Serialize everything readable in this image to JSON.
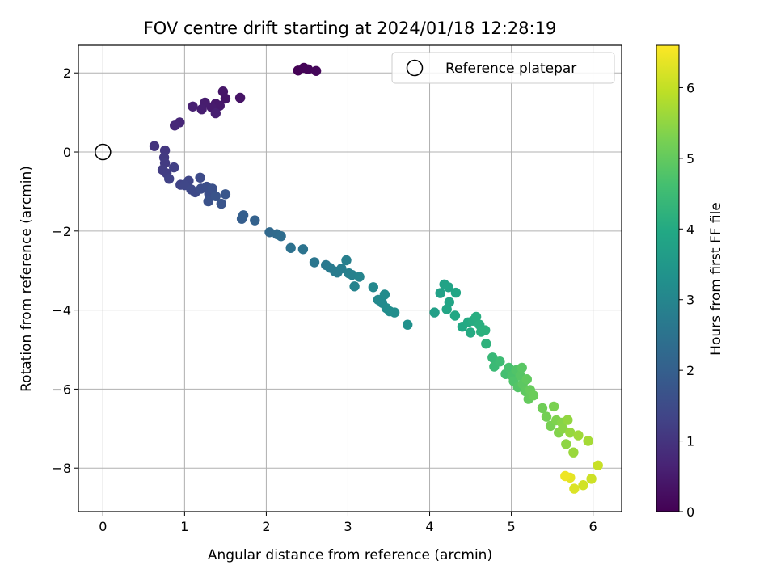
{
  "chart_data": {
    "type": "scatter",
    "title": "FOV centre drift starting at 2024/01/18 12:28:19",
    "xlabel": "Angular distance from reference (arcmin)",
    "ylabel": "Rotation from reference (arcmin)",
    "xlim": [
      -0.3,
      6.35
    ],
    "ylim": [
      -9.1,
      2.7
    ],
    "xticks": [
      0,
      1,
      2,
      3,
      4,
      5,
      6
    ],
    "yticks": [
      -8,
      -6,
      -4,
      -2,
      0,
      2
    ],
    "xtick_labels": [
      "0",
      "1",
      "2",
      "3",
      "4",
      "5",
      "6"
    ],
    "ytick_labels": [
      "−8",
      "−6",
      "−4",
      "−2",
      "0",
      "2"
    ],
    "grid": true,
    "legend": {
      "placement": "top-right",
      "label": "Reference platepar",
      "marker": "open-circle"
    },
    "reference_point": {
      "x": 0,
      "y": 0
    },
    "colorbar": {
      "label": "Hours from first FF file",
      "colormap": "viridis",
      "range": [
        0,
        6.6
      ],
      "ticks": [
        0,
        1,
        2,
        3,
        4,
        5,
        6
      ],
      "tick_labels": [
        "0",
        "1",
        "2",
        "3",
        "4",
        "5",
        "6"
      ]
    },
    "points": [
      {
        "x": 2.39,
        "y": 2.06,
        "c": 0.02
      },
      {
        "x": 2.46,
        "y": 2.13,
        "c": 0.05
      },
      {
        "x": 2.51,
        "y": 2.09,
        "c": 0.08
      },
      {
        "x": 2.61,
        "y": 2.05,
        "c": 0.11
      },
      {
        "x": 1.68,
        "y": 1.37,
        "c": 0.35
      },
      {
        "x": 1.5,
        "y": 1.35,
        "c": 0.38
      },
      {
        "x": 1.47,
        "y": 1.53,
        "c": 0.4
      },
      {
        "x": 1.38,
        "y": 1.22,
        "c": 0.43
      },
      {
        "x": 1.43,
        "y": 1.17,
        "c": 0.46
      },
      {
        "x": 1.33,
        "y": 1.13,
        "c": 0.49
      },
      {
        "x": 1.25,
        "y": 1.25,
        "c": 0.52
      },
      {
        "x": 1.21,
        "y": 1.08,
        "c": 0.55
      },
      {
        "x": 1.38,
        "y": 0.98,
        "c": 0.57
      },
      {
        "x": 1.1,
        "y": 1.15,
        "c": 0.6
      },
      {
        "x": 0.94,
        "y": 0.75,
        "c": 0.72
      },
      {
        "x": 0.88,
        "y": 0.67,
        "c": 0.76
      },
      {
        "x": 0.63,
        "y": 0.15,
        "c": 1.0
      },
      {
        "x": 0.76,
        "y": 0.04,
        "c": 1.05
      },
      {
        "x": 0.75,
        "y": -0.14,
        "c": 1.1
      },
      {
        "x": 0.76,
        "y": -0.28,
        "c": 1.13
      },
      {
        "x": 0.73,
        "y": -0.45,
        "c": 1.17
      },
      {
        "x": 0.78,
        "y": -0.54,
        "c": 1.2
      },
      {
        "x": 0.87,
        "y": -0.39,
        "c": 1.23
      },
      {
        "x": 0.81,
        "y": -0.68,
        "c": 1.28
      },
      {
        "x": 0.95,
        "y": -0.83,
        "c": 1.33
      },
      {
        "x": 1.05,
        "y": -0.73,
        "c": 1.38
      },
      {
        "x": 1.0,
        "y": -0.84,
        "c": 1.4
      },
      {
        "x": 1.08,
        "y": -0.95,
        "c": 1.43
      },
      {
        "x": 1.13,
        "y": -1.02,
        "c": 1.47
      },
      {
        "x": 1.19,
        "y": -0.65,
        "c": 1.5
      },
      {
        "x": 1.2,
        "y": -0.93,
        "c": 1.53
      },
      {
        "x": 1.27,
        "y": -0.88,
        "c": 1.57
      },
      {
        "x": 1.3,
        "y": -1.06,
        "c": 1.6
      },
      {
        "x": 1.34,
        "y": -0.93,
        "c": 1.63
      },
      {
        "x": 1.29,
        "y": -1.25,
        "c": 1.66
      },
      {
        "x": 1.38,
        "y": -1.12,
        "c": 1.7
      },
      {
        "x": 1.45,
        "y": -1.31,
        "c": 1.73
      },
      {
        "x": 1.5,
        "y": -1.07,
        "c": 1.77
      },
      {
        "x": 1.7,
        "y": -1.69,
        "c": 1.95
      },
      {
        "x": 1.72,
        "y": -1.6,
        "c": 1.98
      },
      {
        "x": 1.86,
        "y": -1.73,
        "c": 2.05
      },
      {
        "x": 2.04,
        "y": -2.03,
        "c": 2.25
      },
      {
        "x": 2.13,
        "y": -2.08,
        "c": 2.3
      },
      {
        "x": 2.18,
        "y": -2.13,
        "c": 2.35
      },
      {
        "x": 2.3,
        "y": -2.43,
        "c": 2.45
      },
      {
        "x": 2.45,
        "y": -2.46,
        "c": 2.5
      },
      {
        "x": 2.59,
        "y": -2.79,
        "c": 2.6
      },
      {
        "x": 2.73,
        "y": -2.86,
        "c": 2.65
      },
      {
        "x": 2.78,
        "y": -2.93,
        "c": 2.68
      },
      {
        "x": 2.84,
        "y": -3.02,
        "c": 2.72
      },
      {
        "x": 2.87,
        "y": -3.05,
        "c": 2.75
      },
      {
        "x": 2.92,
        "y": -2.95,
        "c": 2.78
      },
      {
        "x": 2.98,
        "y": -2.74,
        "c": 2.82
      },
      {
        "x": 3.01,
        "y": -3.07,
        "c": 2.85
      },
      {
        "x": 3.05,
        "y": -3.11,
        "c": 2.88
      },
      {
        "x": 3.08,
        "y": -3.4,
        "c": 2.92
      },
      {
        "x": 3.14,
        "y": -3.16,
        "c": 2.95
      },
      {
        "x": 3.31,
        "y": -3.42,
        "c": 3.05
      },
      {
        "x": 3.37,
        "y": -3.74,
        "c": 3.1
      },
      {
        "x": 3.42,
        "y": -3.82,
        "c": 3.12
      },
      {
        "x": 3.45,
        "y": -3.61,
        "c": 3.15
      },
      {
        "x": 3.47,
        "y": -3.95,
        "c": 3.18
      },
      {
        "x": 3.51,
        "y": -4.03,
        "c": 3.2
      },
      {
        "x": 3.57,
        "y": -4.06,
        "c": 3.23
      },
      {
        "x": 3.73,
        "y": -4.37,
        "c": 3.3
      },
      {
        "x": 4.06,
        "y": -4.06,
        "c": 3.7
      },
      {
        "x": 4.13,
        "y": -3.57,
        "c": 3.75
      },
      {
        "x": 4.18,
        "y": -3.35,
        "c": 3.78
      },
      {
        "x": 4.23,
        "y": -3.42,
        "c": 3.81
      },
      {
        "x": 4.24,
        "y": -3.8,
        "c": 3.84
      },
      {
        "x": 4.21,
        "y": -3.98,
        "c": 3.87
      },
      {
        "x": 4.32,
        "y": -3.56,
        "c": 3.9
      },
      {
        "x": 4.31,
        "y": -4.14,
        "c": 3.93
      },
      {
        "x": 4.4,
        "y": -4.42,
        "c": 3.96
      },
      {
        "x": 4.47,
        "y": -4.31,
        "c": 4.0
      },
      {
        "x": 4.5,
        "y": -4.57,
        "c": 4.03
      },
      {
        "x": 4.53,
        "y": -4.27,
        "c": 4.06
      },
      {
        "x": 4.57,
        "y": -4.17,
        "c": 4.09
      },
      {
        "x": 4.61,
        "y": -4.37,
        "c": 4.12
      },
      {
        "x": 4.63,
        "y": -4.55,
        "c": 4.15
      },
      {
        "x": 4.68,
        "y": -4.51,
        "c": 4.18
      },
      {
        "x": 4.69,
        "y": -4.85,
        "c": 4.21
      },
      {
        "x": 4.77,
        "y": -5.2,
        "c": 4.4
      },
      {
        "x": 4.79,
        "y": -5.43,
        "c": 4.45
      },
      {
        "x": 4.86,
        "y": -5.3,
        "c": 4.5
      },
      {
        "x": 4.93,
        "y": -5.62,
        "c": 4.6
      },
      {
        "x": 4.97,
        "y": -5.46,
        "c": 4.65
      },
      {
        "x": 5.01,
        "y": -5.66,
        "c": 4.7
      },
      {
        "x": 5.03,
        "y": -5.8,
        "c": 4.75
      },
      {
        "x": 5.06,
        "y": -5.52,
        "c": 4.78
      },
      {
        "x": 5.08,
        "y": -5.95,
        "c": 4.82
      },
      {
        "x": 5.11,
        "y": -5.66,
        "c": 4.85
      },
      {
        "x": 5.13,
        "y": -5.46,
        "c": 4.88
      },
      {
        "x": 5.14,
        "y": -5.87,
        "c": 4.92
      },
      {
        "x": 5.17,
        "y": -6.05,
        "c": 4.95
      },
      {
        "x": 5.19,
        "y": -5.75,
        "c": 4.98
      },
      {
        "x": 5.21,
        "y": -6.25,
        "c": 5.02
      },
      {
        "x": 5.23,
        "y": -6.02,
        "c": 5.05
      },
      {
        "x": 5.27,
        "y": -6.16,
        "c": 5.08
      },
      {
        "x": 5.38,
        "y": -6.48,
        "c": 5.15
      },
      {
        "x": 5.43,
        "y": -6.7,
        "c": 5.2
      },
      {
        "x": 5.48,
        "y": -6.93,
        "c": 5.24
      },
      {
        "x": 5.52,
        "y": -6.44,
        "c": 5.28
      },
      {
        "x": 5.55,
        "y": -6.79,
        "c": 5.32
      },
      {
        "x": 5.58,
        "y": -7.1,
        "c": 5.36
      },
      {
        "x": 5.62,
        "y": -6.85,
        "c": 5.4
      },
      {
        "x": 5.63,
        "y": -7.0,
        "c": 5.44
      },
      {
        "x": 5.67,
        "y": -7.39,
        "c": 5.48
      },
      {
        "x": 5.69,
        "y": -6.78,
        "c": 5.52
      },
      {
        "x": 5.72,
        "y": -7.1,
        "c": 5.56
      },
      {
        "x": 5.76,
        "y": -7.6,
        "c": 5.6
      },
      {
        "x": 5.82,
        "y": -7.17,
        "c": 5.64
      },
      {
        "x": 5.94,
        "y": -7.31,
        "c": 5.7
      },
      {
        "x": 6.06,
        "y": -7.93,
        "c": 6.05
      },
      {
        "x": 5.98,
        "y": -8.27,
        "c": 6.1
      },
      {
        "x": 5.88,
        "y": -8.43,
        "c": 6.15
      },
      {
        "x": 5.77,
        "y": -8.52,
        "c": 6.25
      },
      {
        "x": 5.72,
        "y": -8.24,
        "c": 6.35
      },
      {
        "x": 5.66,
        "y": -8.2,
        "c": 6.45
      }
    ]
  }
}
